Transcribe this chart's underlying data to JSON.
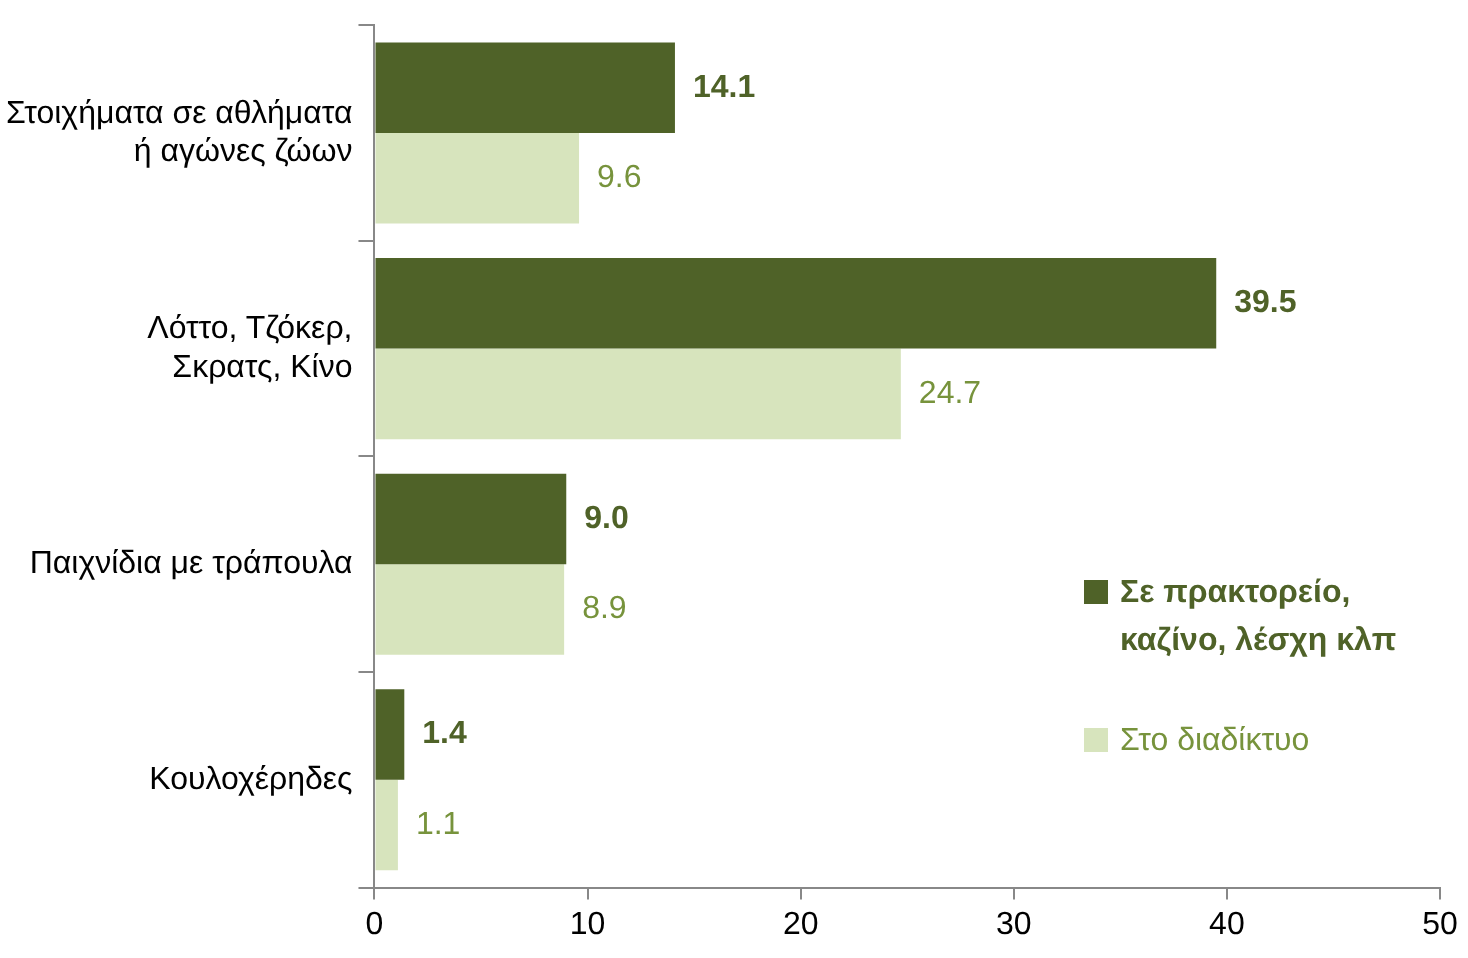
{
  "chart_data": {
    "type": "bar",
    "orientation": "horizontal",
    "categories": [
      "Στοιχήματα σε αθλήματα\nή αγώνες ζώων",
      "Λόττο, Τζόκερ,\nΣκρατς, Κίνο",
      "Παιχνίδια με τράπουλα",
      "Κουλοχέρηδες"
    ],
    "series": [
      {
        "name": "Σε πρακτορείο,\nκαζίνο, λέσχη κλπ",
        "color": "#4f6228",
        "values": [
          14.1,
          39.5,
          9.0,
          1.4
        ],
        "value_labels": [
          "14.1",
          "39.5",
          "9.0",
          "1.4"
        ]
      },
      {
        "name": "Στο διαδίκτυο",
        "color": "#d7e4bd",
        "values": [
          9.6,
          24.7,
          8.9,
          1.1
        ],
        "value_labels": [
          "9.6",
          "24.7",
          "8.9",
          "1.1"
        ]
      }
    ],
    "xlim": [
      0,
      50
    ],
    "xticks": [
      0,
      10,
      20,
      30,
      40,
      50
    ],
    "grid": false,
    "legend": "right"
  }
}
